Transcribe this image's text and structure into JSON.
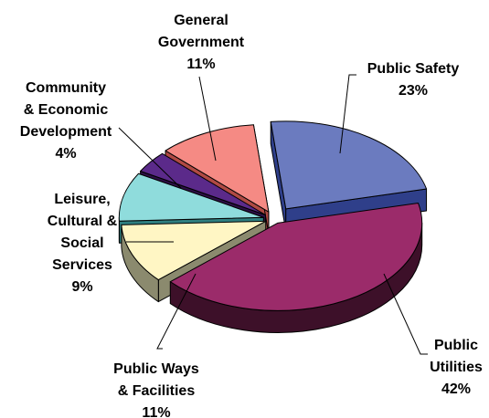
{
  "chart_data": {
    "type": "pie",
    "style": "3d-exploded",
    "title": "",
    "legend": "none",
    "slices": [
      {
        "label_lines": [
          "Public Safety"
        ],
        "value": 23,
        "value_label": "23%",
        "color": "#6b7bbf",
        "side_color": "#2f3f8a"
      },
      {
        "label_lines": [
          "Public",
          "Utilities"
        ],
        "value": 42,
        "value_label": "42%",
        "color": "#9b2b6a",
        "side_color": "#3d1029"
      },
      {
        "label_lines": [
          "Public Ways",
          "& Facilities"
        ],
        "value": 11,
        "value_label": "11%",
        "color": "#fff6c4",
        "side_color": "#8b8a6e"
      },
      {
        "label_lines": [
          "Leisure,",
          "Cultural &",
          "Social",
          "Services"
        ],
        "value": 9,
        "value_label": "9%",
        "color": "#8fdcdc",
        "side_color": "#2f7f80"
      },
      {
        "label_lines": [
          "Community",
          "& Economic",
          "Development"
        ],
        "value": 4,
        "value_label": "4%",
        "color": "#5b2a8a",
        "side_color": "#2c1045"
      },
      {
        "label_lines": [
          "General",
          "Government"
        ],
        "value": 11,
        "value_label": "11%",
        "color": "#f58a84",
        "side_color": "#b04a44"
      }
    ]
  }
}
